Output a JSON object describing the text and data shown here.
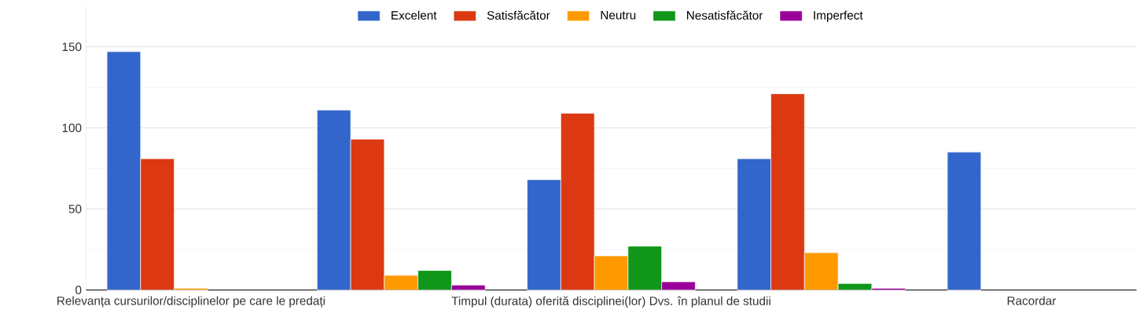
{
  "chart_data": {
    "type": "bar",
    "categories": [
      "Relevanța cursurilor/disciplinelor pe care le predați",
      null,
      "Timpul (durata) oferită disciplinei(lor) Dvs. în planul de studii",
      null,
      "Racordar"
    ],
    "series": [
      {
        "name": "Excelent",
        "color": "#3366cc",
        "values": [
          147,
          111,
          68,
          81,
          85
        ]
      },
      {
        "name": "Satisfăcător",
        "color": "#dc3912",
        "values": [
          81,
          93,
          109,
          121,
          null
        ]
      },
      {
        "name": "Neutru",
        "color": "#ff9900",
        "values": [
          1,
          9,
          21,
          23,
          null
        ]
      },
      {
        "name": "Nesatisfăcător",
        "color": "#109618",
        "values": [
          null,
          12,
          27,
          4,
          null
        ]
      },
      {
        "name": "Imperfect",
        "color": "#990099",
        "values": [
          null,
          3,
          5,
          1,
          null
        ]
      }
    ],
    "ylim": [
      0,
      175
    ],
    "yticks": [
      0,
      50,
      100,
      150
    ],
    "grid": "y",
    "legend": "top"
  }
}
